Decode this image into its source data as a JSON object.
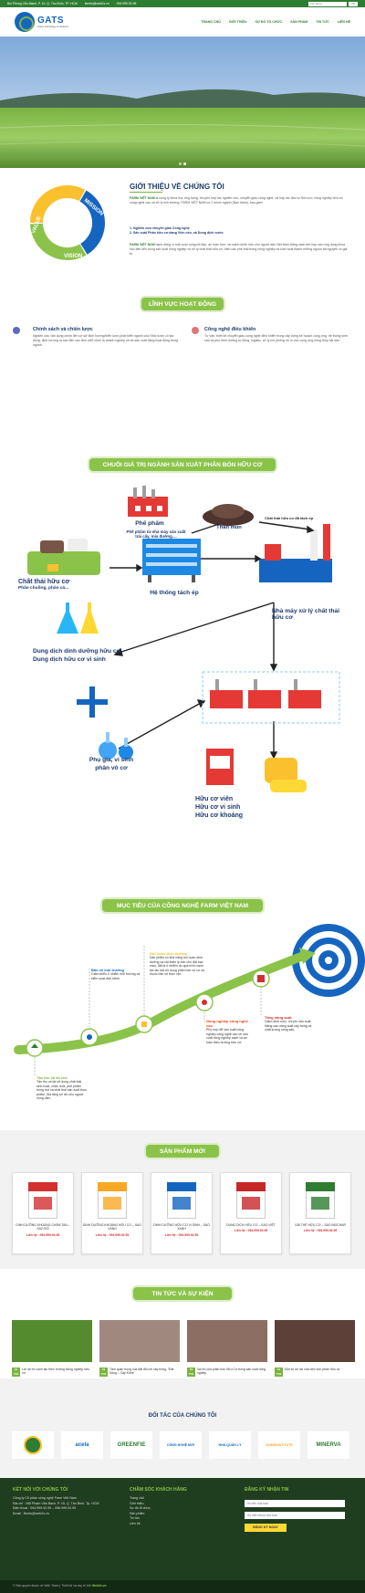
{
  "topbar": {
    "address": "Bùi Phòng Văn Mạnh, P. 10, Q. Tân Bình, TP. HCM",
    "email": "lienhe@web2s.vn",
    "phone": "094.999.92.95",
    "search_placeholder": "Tìm kiếm...",
    "lang": "VN"
  },
  "brand": {
    "name": "GATS",
    "tagline": "Green technology & solutions"
  },
  "nav": [
    "TRANG CHỦ",
    "GIỚI THIỆU",
    "SƠ ĐỒ TỔ CHỨC",
    "SẢN PHẨM",
    "TIN TỨC",
    "LIÊN HỆ"
  ],
  "intro": {
    "title": "GIỚI THIỆU VỀ CHÚNG TÔI",
    "cycle": [
      "MISSION",
      "VISION",
      "VALUE"
    ],
    "p1_brand": "FARM VIỆT NAM",
    "p1": "là công ty khoa học ứng dụng, chuyên hợp tác nghiên cứu, chuyển giao công nghệ, và hợp tác đầu tư lĩnh vực: nông nghiệp hữu cơ công nghệ cao và xử lý môi trường. FARM VIỆT NAM có 2 nhóm ngành (Ban hành), bao gồm:",
    "item1": "1. Nghiên cứu chuyển giao Công nghệ",
    "item2": "2. Sản xuất Phân hữu cơ dạng Viên nén, và Dung dịch nước",
    "p2_brand": "FARM VIỆT NAM",
    "p2": "hành động vì một cuộc sống tốt đẹp, an toàn hơn, và mạnh khỏe hơn cho người dân Việt Nam bằng cách kết hợp các ứng dụng khoa học tiên tiến trong sản xuất nông nghiệp và xử lý chất thải hữu cơ, biến các phế thải trong nông nghiệp và sinh hoạt thành những nguồn tài nguyên có giá trị."
  },
  "activity": {
    "title": "LĨNH VỰC HOẠT ĐỘNG",
    "left_title": "Chính sách và chiến lược",
    "left_text": "Nghiên cứu vận dụng chính liên cơ sở định hướng/triển lược phát triển ngành của Nhà nước có tác động, định hướng ra sao đến các đơn vị/tổ chức là doanh nghiệp và hộ sản xuất đang hoạt động trong ngành.",
    "right_title": "Công nghệ điều khiển",
    "right_text": "Tư vấn, thiết kế chuyển giao công nghệ điều khiển trong xây dựng kế hoạch cung ứng, hệ thống sinh sản và phù dinh dưỡng tự động, logistic, xử lý mô phỏng rủi ro cho cung ứng nông thủy hải sản."
  },
  "chain": {
    "title": "CHUỖI GIÁ TRỊ NGÀNH SẢN XUẤT PHÂN BÓN HỮU CƠ",
    "by_product": "Phế phẩm",
    "by_product_sub": "Phế phẩm từ nhà máy sản xuất trái cây, mía đường....",
    "peat": "Than mùn",
    "separated": "Chất thải hữu cơ đã tách ép",
    "waste": "Chất thải hữu cơ",
    "waste_sub": "Phân chuồng, phân cá...",
    "press": "Hệ thống tách ép",
    "plant": "Nhà máy xử lý chất thải hữu cơ",
    "solution1": "Dung dịch dinh dưỡng hữu cơ",
    "solution2": "Dung dịch hữu cơ vi sinh",
    "additive1": "Phụ gia, vi sinh",
    "additive2": "phân vô cơ",
    "product1": "Hữu cơ viên",
    "product2": "Hữu cơ vi sinh",
    "product3": "Hữu cơ khoáng"
  },
  "goals": {
    "title": "MỤC TIÊU CỦA CÔNG NGHỆ FARM VIỆT NAM",
    "g1_title": "Bảo vệ môi trường",
    "g1_text": "Giảm thiểu ô nhiễm môi trường và kiểm soát dịch bệnh.",
    "g2_title": "Bồi hoàn dinh dưỡng",
    "g2_text": "Sản phẩm có khả năng bồi hoàn dinh dưỡng và cải thiện lý tính cho đất bạc màu, đất bị ô nhiễm do quá trình canh tác lâu dài sử dụng phân bón vô cơ và thuốc bảo vệ thực vật.",
    "g3_title": "Nông nghiệp công nghệ cao",
    "g3_text": "Phù hợp để sản xuất nông nghiệp công nghệ cao về sản xuất nông nghiệp sạch và an toàn theo hướng hữu cơ.",
    "g4_title": "Tăng năng suất",
    "g4_text": "Giảm đinh mức, chi phí sản xuất. Nâng cao năng suất cây trồng và chất lượng nông sản.",
    "g5_title": "Tận thu và tái chế",
    "g5_text": "Tận thu và tái sử dụng chất thải sinh hoạt, chăn nuôi, phế phẩm trồng trọt và chất thải sản xuất thực phẩm. Gia tăng lợi ích cho người nông dân."
  },
  "products": {
    "title": "SẢN PHẨM MỚI",
    "items": [
      {
        "name": "DINH DƯỠNG KHOÁNG CHÂM TAN – SAO ĐỎ",
        "price": "Liên hệ : 094.999.92.95",
        "color": "#d32f2f"
      },
      {
        "name": "DINH DƯỠNG KHOÁNG HỮU CƠ – SAO VÀNG",
        "price": "Liên hệ : 094.999.92.95",
        "color": "#f9a825"
      },
      {
        "name": "DINH DƯỠNG HỮU CƠ VI SINH – SAO XANH",
        "price": "Liên hệ : 094.999.92.95",
        "color": "#1565c0"
      },
      {
        "name": "DUNG DỊCH HỮU CƠ – SAO VIỆT",
        "price": "Liên hệ : 094.999.92.95",
        "color": "#c62828"
      },
      {
        "name": "GIÁ THỂ HỮU CƠ – SAO BIOCHAR",
        "price": "Liên hệ : 094.999.92.95",
        "color": "#2e7d32"
      }
    ]
  },
  "news": {
    "title": "TIN TỨC VÀ SỰ KIỆN",
    "items": [
      {
        "day": "19",
        "month": "Th9",
        "title": "Lợi ích từ canh tác theo hướng Nông nghiệp hữu cơ"
      },
      {
        "day": "19",
        "month": "Th9",
        "title": "Tầm quan trọng của đất đối với cây trồng, \"Đất Sống – Cây Khỏe\""
      },
      {
        "day": "19",
        "month": "Th9",
        "title": "Vai trò của phân bón Hữu Cơ trong sản xuất nông nghiệp"
      },
      {
        "day": "19",
        "month": "Th9",
        "title": "Một số lợi ích của việc bón phân hữu cơ"
      }
    ]
  },
  "partners": {
    "title": "ĐỐI TÁC CỦA CHÚNG TÔI",
    "items": [
      "",
      "acela",
      "GREENFIE",
      "CÔNG NGHỆ MỚI",
      "NHÀ QUẢN LÝ",
      "GOMEINSTITUTE",
      "MINERVA"
    ]
  },
  "footer": {
    "connect_title": "KẾT NỐI VỚI CHÚNG TÔI",
    "company": "Công ty Cổ phần công nghệ Farm Việt Nam",
    "address": "Địa chỉ : 285 Phạm Văn Bạch, P. 15, Q. Tân Bình, Tp. HCM",
    "phone": "Điện thoại : 094.999.92.95 – 096.999.92.95",
    "email": "Email : fbstro@web2s.vn",
    "care_title": "CHĂM SÓC KHÁCH HÀNG",
    "care_links": [
      "Trang chủ",
      "Giới thiệu",
      "Sơ đồ tổ chức",
      "Sản phẩm",
      "Tin tức",
      "Liên hệ"
    ],
    "sub_title": "ĐĂNG KÝ NHẬN TIN",
    "name_ph": "Họ tên của bạn",
    "phone_ph": "Số điện thoại của bạn",
    "submit": "ĐĂNG KÝ NGAY",
    "copyright_prefix": "© Bản quyền thuộc về Web Team | Thiết kế và duy trì bởi",
    "copyright_brand": "Web2s.vn"
  },
  "colors": {
    "green": "#8bc34a",
    "navy": "#1e3a6e",
    "dark_footer": "#1f3d1f",
    "accent_red": "#d32f2f"
  }
}
